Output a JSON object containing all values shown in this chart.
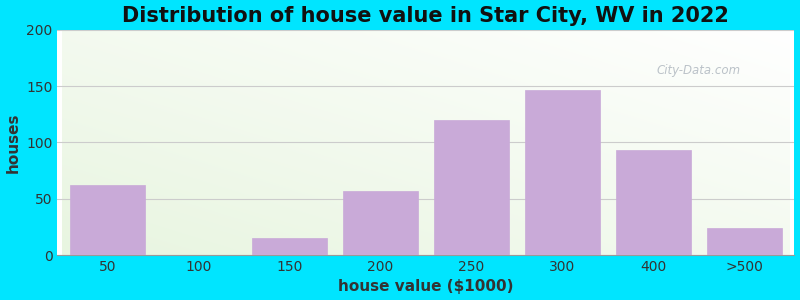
{
  "title": "Distribution of house value in Star City, WV in 2022",
  "xlabel": "house value ($1000)",
  "ylabel": "houses",
  "categories": [
    "50",
    "100",
    "150",
    "200",
    "250",
    "300",
    "400",
    ">500"
  ],
  "values": [
    62,
    0,
    15,
    57,
    120,
    147,
    93,
    24
  ],
  "bar_color": "#c9aad8",
  "ylim": [
    0,
    200
  ],
  "yticks": [
    0,
    50,
    100,
    150,
    200
  ],
  "background_outer": "#00e5ff",
  "bg_color_top_left": "#e8f5e0",
  "bg_color_bottom_right": "#ffffff",
  "title_fontsize": 15,
  "axis_label_fontsize": 11,
  "tick_fontsize": 10,
  "watermark_text": "City-Data.com",
  "watermark_color": "#b0b8c0",
  "grid_color": "#cccccc",
  "title_color": "#111111",
  "label_color": "#333333"
}
